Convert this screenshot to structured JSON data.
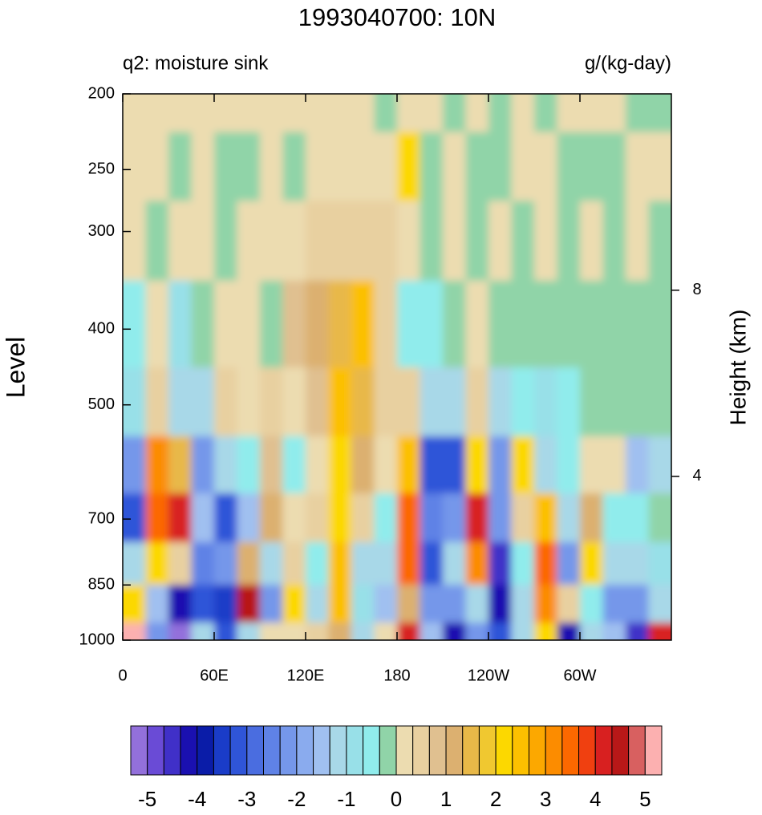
{
  "chart_data": {
    "type": "heatmap",
    "title": "1993040700: 10N",
    "subtitle": "q2: moisture sink",
    "units": "g/(kg-day)",
    "ylabel": "Level",
    "y2label": "Height (km)",
    "xlim": [
      0,
      360
    ],
    "xticks": [
      0,
      {
        "value": 60,
        "label": "60E"
      },
      {
        "value": 120,
        "label": "120E"
      },
      180,
      {
        "value": 240,
        "label": "120W"
      },
      {
        "value": 300,
        "label": "60W"
      }
    ],
    "ylim": [
      1000,
      200
    ],
    "yscale": "log",
    "yticks": [
      200,
      250,
      300,
      400,
      500,
      700,
      850,
      1000
    ],
    "y2lim": [
      0.48,
      12.22
    ],
    "y2ticks": [
      4,
      8
    ],
    "x": [
      7.5,
      22.5,
      37.5,
      52.5,
      67.5,
      82.5,
      97.5,
      112.5,
      127.5,
      142.5,
      157.5,
      172.5,
      187.5,
      202.5,
      217.5,
      232.5,
      247.5,
      262.5,
      277.5,
      292.5,
      307.5,
      322.5,
      337.5,
      352.5
    ],
    "y": [
      1000,
      900,
      800,
      700,
      600,
      500,
      400,
      300,
      250,
      200
    ],
    "z": [
      [
        5,
        -2,
        -5,
        -1,
        -3,
        -1,
        0.3,
        0.3,
        0.5,
        1,
        -1,
        0.3,
        4,
        -1.5,
        -4,
        -2,
        -3,
        -1,
        2,
        -4,
        -1,
        -1.5,
        -4.5,
        4
      ],
      [
        2,
        -1.5,
        -4,
        -3,
        -3.5,
        4.5,
        -2,
        2,
        -1,
        2.5,
        -0.8,
        -1.5,
        1,
        -2,
        -2,
        -1,
        -4,
        -1,
        3,
        0.5,
        -0.5,
        -2,
        -2,
        -1
      ],
      [
        -1,
        2,
        0.5,
        -2.5,
        -2,
        1,
        -1,
        0.5,
        -0.5,
        2.5,
        -1,
        -1,
        3.5,
        -3,
        -1,
        3,
        -4.5,
        -0.5,
        3.5,
        -2,
        2,
        -1,
        -1,
        -0.8
      ],
      [
        -3,
        3.5,
        4,
        -1.5,
        -3,
        -1.5,
        1,
        0.3,
        0.5,
        2,
        0.5,
        -0.5,
        3.5,
        -2.5,
        -2,
        4,
        -2,
        0.5,
        2.5,
        -1,
        1,
        -0.5,
        -0.5,
        -0.2
      ],
      [
        -2,
        3,
        1.5,
        -2,
        -1,
        -0.5,
        0.8,
        -0.5,
        0.3,
        2,
        1,
        0.3,
        2.5,
        -3,
        -3,
        2,
        -2,
        2,
        -1,
        -0.5,
        0.3,
        0.3,
        -1.5,
        -1
      ],
      [
        -0.7,
        0.5,
        -1,
        -1,
        0.5,
        0.3,
        0.5,
        0.3,
        0.8,
        2.5,
        1.5,
        0.5,
        0.5,
        -1,
        -1,
        0.5,
        -1,
        -0.5,
        -0.8,
        -0.5,
        -0.2,
        -0.2,
        -0.2,
        -0.2
      ],
      [
        -0.5,
        0.3,
        -0.8,
        -0.2,
        0.3,
        0.3,
        -0.2,
        0.8,
        1,
        1.5,
        2.5,
        0.5,
        -0.5,
        -0.5,
        -0.2,
        0.3,
        -0.2,
        -0.2,
        -0.2,
        -0.2,
        -0.2,
        -0.2,
        -0.2,
        -0.2
      ],
      [
        0.3,
        -0.2,
        0.3,
        0.3,
        -0.2,
        0.3,
        0.3,
        0.3,
        0.5,
        0.5,
        0.5,
        0.5,
        0.3,
        -0.2,
        0.3,
        -0.2,
        0.3,
        -0.2,
        0.3,
        -0.2,
        0.3,
        -0.2,
        0.3,
        -0.2
      ],
      [
        0.3,
        0.3,
        -0.2,
        0.3,
        -0.2,
        -0.2,
        0.3,
        -0.2,
        0.3,
        0.3,
        0.3,
        0.3,
        2,
        -0.2,
        0.3,
        -0.2,
        -0.2,
        0.3,
        0.3,
        -0.2,
        -0.2,
        -0.2,
        0.3,
        0.3
      ],
      [
        0.3,
        0.3,
        0.3,
        0.2,
        0.3,
        0.3,
        0.3,
        0.3,
        0.3,
        0.3,
        0.3,
        -0.2,
        0.3,
        0.3,
        -0.2,
        0.3,
        -0.2,
        0.3,
        -0.2,
        0.3,
        0.3,
        0.3,
        -0.2,
        -0.2
      ]
    ],
    "colorbar": {
      "lim": [
        -5.333,
        5.333
      ],
      "ticks": [
        -5,
        -4,
        -3,
        -2,
        -1,
        0,
        1,
        2,
        3,
        4,
        5
      ],
      "colors": [
        "#9370db",
        "#6a4bd6",
        "#4030c8",
        "#1a10b0",
        "#0a1ca8",
        "#1a3cc8",
        "#2f55d8",
        "#4a6de0",
        "#5f82e6",
        "#7597ea",
        "#8aabee",
        "#a0c0f0",
        "#a8d8e8",
        "#98e0e8",
        "#90ecec",
        "#90d4a8",
        "#ecdcb0",
        "#e8d0a0",
        "#e0c090",
        "#dcb070",
        "#e8b848",
        "#f0c830",
        "#fcd800",
        "#fcc000",
        "#fca800",
        "#fc8c00",
        "#fc6800",
        "#f04010",
        "#d82020",
        "#b81818",
        "#d86060",
        "#fcb0b0"
      ]
    }
  }
}
